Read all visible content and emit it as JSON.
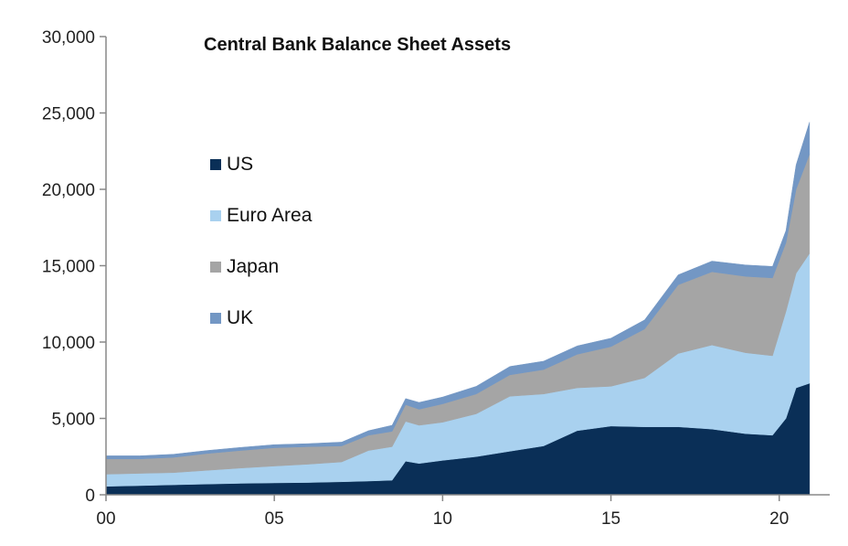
{
  "chart_data": {
    "type": "area",
    "stacked": true,
    "title": "Central Bank Balance Sheet Assets",
    "xlabel": "",
    "ylabel": "",
    "xlim": [
      2000,
      2021.5
    ],
    "ylim": [
      0,
      30000
    ],
    "y_ticks": [
      {
        "value": 0,
        "label": "0"
      },
      {
        "value": 5000,
        "label": "5,000"
      },
      {
        "value": 10000,
        "label": "10,000"
      },
      {
        "value": 15000,
        "label": "15,000"
      },
      {
        "value": 20000,
        "label": "20,000"
      },
      {
        "value": 25000,
        "label": "25,000"
      },
      {
        "value": 30000,
        "label": "30,000"
      }
    ],
    "x_ticks": [
      {
        "value": 2000,
        "label": "00"
      },
      {
        "value": 2005,
        "label": "05"
      },
      {
        "value": 2010,
        "label": "10"
      },
      {
        "value": 2015,
        "label": "15"
      },
      {
        "value": 2020,
        "label": "20"
      }
    ],
    "legend_position": "upper-left",
    "x": [
      2000,
      2001,
      2002,
      2003,
      2004,
      2005,
      2006,
      2007,
      2007.8,
      2008.5,
      2008.9,
      2009.3,
      2010,
      2011,
      2012,
      2013,
      2014,
      2015,
      2016,
      2017,
      2018,
      2019,
      2019.8,
      2020.2,
      2020.5,
      2020.9
    ],
    "series": [
      {
        "name": "US",
        "color": "#0a2f57",
        "values": [
          550,
          600,
          650,
          700,
          750,
          780,
          800,
          850,
          900,
          950,
          2200,
          2050,
          2250,
          2500,
          2850,
          3200,
          4200,
          4500,
          4450,
          4450,
          4300,
          4000,
          3900,
          5000,
          7000,
          7300
        ]
      },
      {
        "name": "Euro Area",
        "color": "#a9d1ef",
        "values": [
          800,
          800,
          800,
          900,
          1000,
          1100,
          1200,
          1300,
          2000,
          2200,
          2600,
          2500,
          2500,
          2800,
          3600,
          3400,
          2800,
          2600,
          3200,
          4800,
          5500,
          5300,
          5200,
          7000,
          7500,
          8500
        ]
      },
      {
        "name": "Japan",
        "color": "#a5a5a5",
        "values": [
          1000,
          950,
          1000,
          1100,
          1150,
          1200,
          1150,
          1050,
          1000,
          1000,
          1100,
          1050,
          1200,
          1300,
          1400,
          1600,
          2200,
          2600,
          3200,
          4500,
          4800,
          5000,
          5100,
          4500,
          5500,
          6500
        ]
      },
      {
        "name": "UK",
        "color": "#7397c4",
        "values": [
          200,
          200,
          200,
          200,
          200,
          200,
          200,
          250,
          300,
          400,
          400,
          450,
          450,
          500,
          550,
          550,
          550,
          550,
          600,
          650,
          700,
          750,
          750,
          800,
          1600,
          2100
        ]
      }
    ]
  }
}
